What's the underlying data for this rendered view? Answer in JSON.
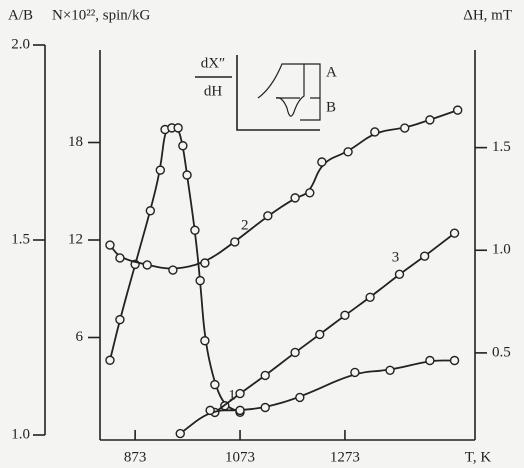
{
  "chart_data": {
    "type": "line",
    "xlabel": "T, K",
    "ylabel": "A/B",
    "y3label": "N×10²², spin/kG",
    "y2label": "ΔH, mT",
    "inset_labels": {
      "numerator": "dX″",
      "denominator": "dH",
      "a": "A",
      "b": "B"
    },
    "xlim": [
      806,
      1521
    ],
    "xticks": [
      873,
      1073,
      1273
    ],
    "ylim": [
      1,
      2
    ],
    "yticks": [
      {
        "value": 1,
        "label": "1.0"
      },
      1.5,
      {
        "value": 2,
        "label": "2.0"
      }
    ],
    "y3lim": [
      0,
      24
    ],
    "y3ticks": [
      6,
      12,
      18
    ],
    "y2lim": [
      0.1,
      2.0
    ],
    "y2ticks": [
      0.5,
      {
        "value": 1,
        "label": "1.0"
      },
      1.5
    ],
    "series": [
      {
        "name": "1",
        "color": "#222222",
        "axis": "y3",
        "x": [
          825,
          844,
          873,
          902,
          921,
          930,
          943,
          955,
          964,
          972,
          987,
          997,
          1006,
          1025,
          1044,
          1073
        ],
        "values": [
          4.6,
          7.1,
          10.5,
          13.8,
          16.3,
          18.8,
          18.9,
          18.9,
          17.8,
          16.0,
          12.6,
          9.5,
          5.8,
          3.1,
          1.8,
          1.4
        ]
      },
      {
        "name": "2",
        "color": "#222222",
        "x": [
          825,
          844,
          896,
          945,
          1006,
          1063,
          1126,
          1178,
          1206,
          1229,
          1279,
          1330,
          1387,
          1435,
          1488
        ],
        "values": [
          1.487,
          1.454,
          1.436,
          1.423,
          1.441,
          1.495,
          1.562,
          1.608,
          1.621,
          1.7,
          1.726,
          1.777,
          1.787,
          1.808,
          1.833
        ]
      },
      {
        "name": "3",
        "color": "#222222",
        "axis": "y2",
        "x": [
          1025,
          1073,
          1121,
          1178,
          1225,
          1273,
          1321,
          1377,
          1425,
          1482
        ],
        "values": [
          0.21,
          0.302,
          0.39,
          0.502,
          0.59,
          0.683,
          0.771,
          0.883,
          0.971,
          1.083
        ]
      },
      {
        "color": "#222222",
        "axis": "y2",
        "x": [
          959,
          1016,
          1073,
          1121,
          1187,
          1292,
          1359,
          1435,
          1482
        ],
        "values": [
          0.107,
          0.22,
          0.22,
          0.234,
          0.283,
          0.405,
          0.415,
          0.463,
          0.463
        ]
      }
    ]
  }
}
